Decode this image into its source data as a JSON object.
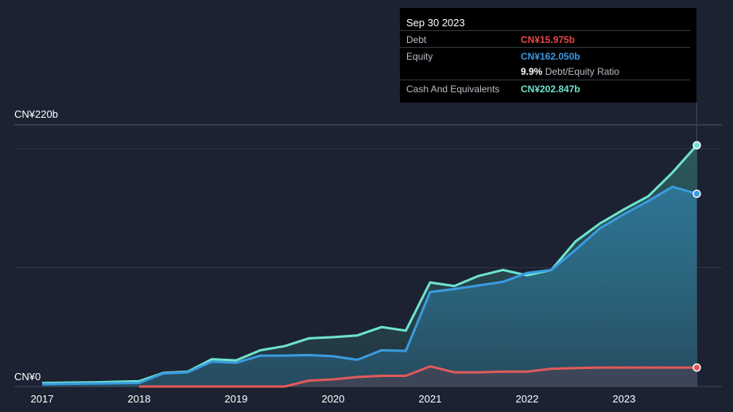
{
  "chart_data": {
    "type": "area",
    "ylim": [
      0,
      220
    ],
    "y_unit": "CN¥ billions",
    "y_tick_labels": [
      "CN¥220b",
      "CN¥0"
    ],
    "x_tick_labels": [
      "2017",
      "2018",
      "2019",
      "2020",
      "2021",
      "2022",
      "2023"
    ],
    "x_range": [
      2017.0,
      2023.75
    ],
    "grid": true,
    "series": [
      {
        "name": "Debt",
        "color": "#e05a5a",
        "x": [
          2018.0,
          2019.5,
          2019.75,
          2020.0,
          2020.25,
          2020.5,
          2020.75,
          2021.0,
          2021.25,
          2021.5,
          2021.75,
          2022.0,
          2022.25,
          2022.5,
          2022.75,
          2023.0,
          2023.25,
          2023.5,
          2023.75
        ],
        "values": [
          0,
          0,
          5,
          6,
          8,
          9,
          9,
          17,
          12,
          12,
          12.5,
          12.5,
          15,
          15.5,
          16,
          16,
          16,
          16,
          15.975
        ]
      },
      {
        "name": "Equity",
        "color": "#3a9be0",
        "x": [
          2017.0,
          2017.5,
          2018.0,
          2018.25,
          2018.5,
          2018.75,
          2019.0,
          2019.25,
          2019.5,
          2019.75,
          2020.0,
          2020.25,
          2020.5,
          2020.75,
          2021.0,
          2021.25,
          2021.5,
          2021.75,
          2022.0,
          2022.25,
          2022.5,
          2022.75,
          2023.0,
          2023.25,
          2023.5,
          2023.75
        ],
        "values": [
          2,
          2.5,
          3,
          11,
          12,
          21,
          20,
          26,
          26,
          26.5,
          25.5,
          22.5,
          30.5,
          30,
          79.5,
          82,
          85,
          88,
          95.5,
          98,
          115,
          133,
          145,
          156,
          168,
          162.05
        ]
      },
      {
        "name": "Cash And Equivalents",
        "color": "#6ee3cf",
        "x": [
          2017.0,
          2017.5,
          2018.0,
          2018.25,
          2018.5,
          2018.75,
          2019.0,
          2019.25,
          2019.5,
          2019.75,
          2020.0,
          2020.25,
          2020.5,
          2020.75,
          2021.0,
          2021.25,
          2021.5,
          2021.75,
          2022.0,
          2022.25,
          2022.5,
          2022.75,
          2023.0,
          2023.25,
          2023.5,
          2023.75
        ],
        "values": [
          3,
          3.5,
          4.5,
          11.5,
          12.5,
          23,
          22,
          30.5,
          34,
          40.5,
          41.5,
          43,
          50,
          47,
          87.5,
          84.5,
          93,
          98,
          93.5,
          98,
          122,
          137,
          149,
          160,
          180,
          202.847
        ]
      }
    ]
  },
  "tooltip": {
    "date": "Sep 30 2023",
    "debt_label": "Debt",
    "debt_value": "CN¥15.975b",
    "equity_label": "Equity",
    "equity_value": "CN¥162.050b",
    "ratio_pct": "9.9%",
    "ratio_text": "Debt/Equity Ratio",
    "cash_label": "Cash And Equivalents",
    "cash_value": "CN¥202.847b"
  },
  "colors": {
    "background": "#1c2231",
    "grid": "#2f3644",
    "debt": "#e05a5a",
    "equity": "#3a9be0",
    "cash": "#6ee3cf"
  }
}
